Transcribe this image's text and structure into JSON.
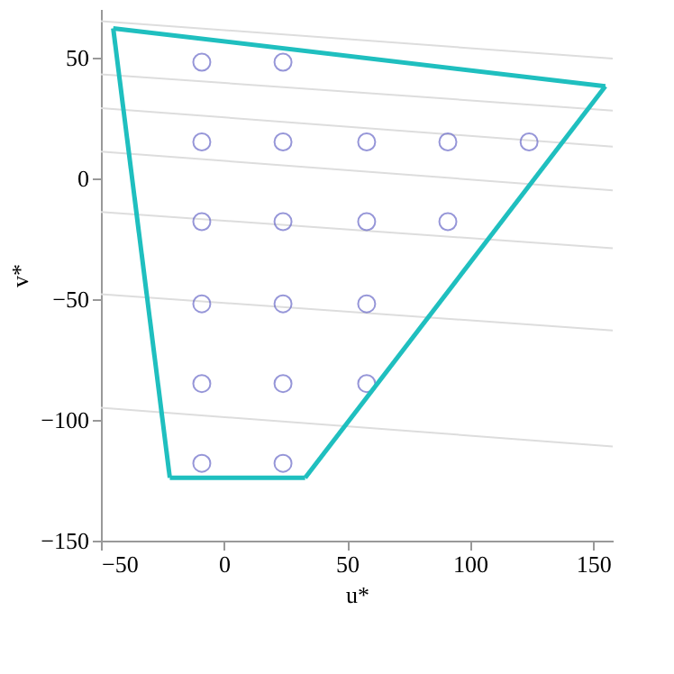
{
  "chart_data": {
    "type": "scatter",
    "xlabel": "u*",
    "ylabel": "v*",
    "xlim": [
      -50,
      158
    ],
    "ylim": [
      -150,
      70
    ],
    "xticks": [
      -50,
      0,
      50,
      100,
      150
    ],
    "yticks": [
      -150,
      -100,
      -50,
      0,
      50
    ],
    "grid": false,
    "series": [
      {
        "type": "line",
        "color": "#dddddd",
        "x": [
          -50,
          158
        ],
        "values": [
          65,
          49.5
        ]
      },
      {
        "type": "line",
        "color": "#dddddd",
        "x": [
          -50,
          158
        ],
        "values": [
          43,
          28
        ]
      },
      {
        "type": "line",
        "color": "#dddddd",
        "x": [
          -50,
          158
        ],
        "values": [
          29,
          13
        ]
      },
      {
        "type": "line",
        "color": "#dddddd",
        "x": [
          -50,
          158
        ],
        "values": [
          11,
          -5
        ]
      },
      {
        "type": "line",
        "color": "#dddddd",
        "x": [
          -50,
          158
        ],
        "values": [
          -14,
          -29
        ]
      },
      {
        "type": "line",
        "color": "#dddddd",
        "x": [
          -50,
          158
        ],
        "values": [
          -48,
          -63
        ]
      },
      {
        "type": "line",
        "color": "#dddddd",
        "x": [
          -50,
          158
        ],
        "values": [
          -95,
          -111
        ]
      },
      {
        "color": "#6a6ac8",
        "marker": "circle",
        "x": [
          -9,
          24,
          -9,
          24,
          58,
          91,
          124,
          -9,
          24,
          58,
          91,
          -9,
          24,
          58,
          -9,
          24,
          58,
          -9,
          24
        ],
        "values": [
          48,
          48,
          15,
          15,
          15,
          15,
          15,
          -18,
          -18,
          -18,
          -18,
          -52,
          -52,
          -52,
          -85,
          -85,
          -85,
          -118,
          -118
        ]
      },
      {
        "type": "line",
        "color": "#1fbfbf",
        "x": [
          -45,
          155
        ],
        "values": [
          62,
          38
        ]
      },
      {
        "type": "line",
        "color": "#1fbfbf",
        "x": [
          33,
          155
        ],
        "values": [
          -124,
          38
        ]
      },
      {
        "type": "line",
        "color": "#1fbfbf",
        "x": [
          -22,
          33
        ],
        "values": [
          -124,
          -124
        ]
      },
      {
        "type": "line",
        "color": "#1fbfbf",
        "x": [
          -45,
          -22
        ],
        "values": [
          62,
          -124
        ]
      }
    ]
  }
}
